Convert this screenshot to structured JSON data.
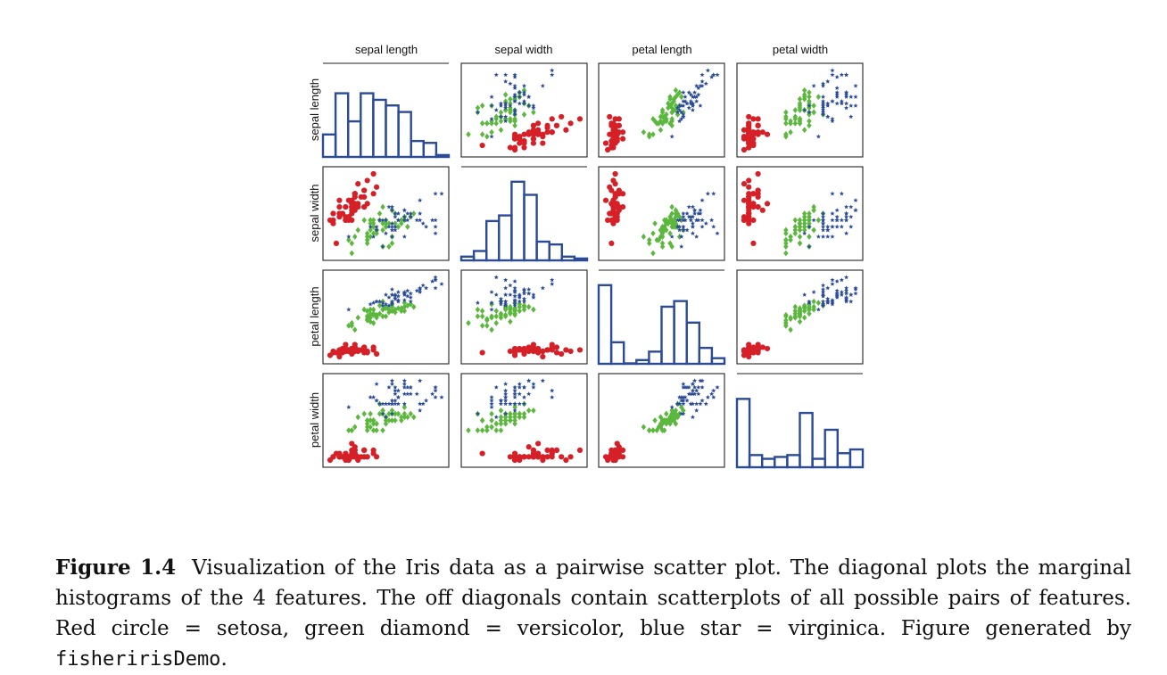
{
  "figure": {
    "features": [
      "sepal length",
      "sepal width",
      "petal length",
      "petal width"
    ],
    "colors": {
      "setosa": "#d62028",
      "versicolor": "#5cb73e",
      "virginica": "#2b4b98",
      "histogram": "#2b4b98",
      "frame": "#222222"
    }
  },
  "caption": {
    "label": "Figure 1.4",
    "text": "Visualization of the Iris data as a pairwise scatter plot.  The diagonal plots the marginal histograms of the 4 features.  The off diagonals contain scatterplots of all possible pairs of features.  Red circle = setosa, green diamond = versicolor, blue star = virginica. Figure generated by ",
    "code": "fisheririsDemo",
    "end": "."
  },
  "chart_data": {
    "type": "scatter",
    "subtype": "pairwise scatter matrix with histograms on the diagonal",
    "variables": [
      "sepal length",
      "sepal width",
      "petal length",
      "petal width"
    ],
    "axis_ranges": {
      "sepal length": [
        4.3,
        7.9
      ],
      "sepal width": [
        2.0,
        4.4
      ],
      "petal length": [
        1.0,
        6.9
      ],
      "petal width": [
        0.1,
        2.5
      ]
    },
    "grid": false,
    "legend": "none",
    "histogram_heights": {
      "sepal length": [
        0.24,
        0.68,
        0.38,
        0.68,
        0.61,
        0.55,
        0.48,
        0.17,
        0.15,
        0.02
      ],
      "sepal width": [
        0.04,
        0.1,
        0.42,
        0.48,
        0.84,
        0.7,
        0.2,
        0.17,
        0.04,
        0.02
      ],
      "petal length": [
        0.84,
        0.23,
        0.0,
        0.04,
        0.13,
        0.61,
        0.67,
        0.44,
        0.17,
        0.06
      ],
      "petal width": [
        0.73,
        0.13,
        0.09,
        0.11,
        0.13,
        0.58,
        0.09,
        0.4,
        0.15,
        0.19
      ]
    },
    "series": [
      {
        "name": "setosa",
        "marker": "circle",
        "color": "#d62028",
        "points": [
          [
            5.1,
            3.5,
            1.4,
            0.2
          ],
          [
            4.9,
            3.0,
            1.4,
            0.2
          ],
          [
            4.7,
            3.2,
            1.3,
            0.2
          ],
          [
            4.6,
            3.1,
            1.5,
            0.2
          ],
          [
            5.0,
            3.6,
            1.4,
            0.2
          ],
          [
            5.4,
            3.9,
            1.7,
            0.4
          ],
          [
            4.6,
            3.4,
            1.4,
            0.3
          ],
          [
            5.0,
            3.4,
            1.5,
            0.2
          ],
          [
            4.4,
            2.9,
            1.4,
            0.2
          ],
          [
            4.9,
            3.1,
            1.5,
            0.1
          ],
          [
            5.4,
            3.7,
            1.5,
            0.2
          ],
          [
            4.8,
            3.4,
            1.6,
            0.2
          ],
          [
            4.8,
            3.0,
            1.4,
            0.1
          ],
          [
            4.3,
            3.0,
            1.1,
            0.1
          ],
          [
            5.8,
            4.0,
            1.2,
            0.2
          ],
          [
            5.7,
            4.4,
            1.5,
            0.4
          ],
          [
            5.4,
            3.9,
            1.3,
            0.4
          ],
          [
            5.1,
            3.5,
            1.4,
            0.3
          ],
          [
            5.7,
            3.8,
            1.7,
            0.3
          ],
          [
            5.1,
            3.8,
            1.5,
            0.3
          ],
          [
            5.4,
            3.4,
            1.7,
            0.2
          ],
          [
            5.1,
            3.7,
            1.5,
            0.4
          ],
          [
            4.6,
            3.6,
            1.0,
            0.2
          ],
          [
            5.1,
            3.3,
            1.7,
            0.5
          ],
          [
            4.8,
            3.4,
            1.9,
            0.2
          ],
          [
            5.0,
            3.0,
            1.6,
            0.2
          ],
          [
            5.0,
            3.4,
            1.6,
            0.4
          ],
          [
            5.2,
            3.5,
            1.5,
            0.2
          ],
          [
            5.2,
            3.4,
            1.4,
            0.2
          ],
          [
            4.7,
            3.2,
            1.6,
            0.2
          ],
          [
            4.8,
            3.1,
            1.6,
            0.2
          ],
          [
            5.4,
            3.4,
            1.5,
            0.4
          ],
          [
            5.2,
            4.1,
            1.5,
            0.1
          ],
          [
            5.5,
            4.2,
            1.4,
            0.2
          ],
          [
            4.9,
            3.1,
            1.5,
            0.2
          ],
          [
            5.0,
            3.2,
            1.2,
            0.2
          ],
          [
            5.5,
            3.5,
            1.3,
            0.2
          ],
          [
            4.9,
            3.6,
            1.4,
            0.1
          ],
          [
            4.4,
            3.0,
            1.3,
            0.2
          ],
          [
            5.1,
            3.4,
            1.5,
            0.2
          ],
          [
            5.0,
            3.5,
            1.3,
            0.3
          ],
          [
            4.5,
            2.3,
            1.3,
            0.3
          ],
          [
            4.4,
            3.2,
            1.3,
            0.2
          ],
          [
            5.0,
            3.5,
            1.6,
            0.6
          ],
          [
            5.1,
            3.8,
            1.9,
            0.4
          ],
          [
            4.8,
            3.0,
            1.4,
            0.3
          ],
          [
            5.1,
            3.8,
            1.6,
            0.2
          ],
          [
            4.6,
            3.2,
            1.4,
            0.2
          ],
          [
            5.3,
            3.7,
            1.5,
            0.2
          ],
          [
            5.0,
            3.3,
            1.4,
            0.2
          ]
        ]
      },
      {
        "name": "versicolor",
        "marker": "diamond",
        "color": "#5cb73e",
        "points": [
          [
            7.0,
            3.2,
            4.7,
            1.4
          ],
          [
            6.4,
            3.2,
            4.5,
            1.5
          ],
          [
            6.9,
            3.1,
            4.9,
            1.5
          ],
          [
            5.5,
            2.3,
            4.0,
            1.3
          ],
          [
            6.5,
            2.8,
            4.6,
            1.5
          ],
          [
            5.7,
            2.8,
            4.5,
            1.3
          ],
          [
            6.3,
            3.3,
            4.7,
            1.6
          ],
          [
            4.9,
            2.4,
            3.3,
            1.0
          ],
          [
            6.6,
            2.9,
            4.6,
            1.3
          ],
          [
            5.2,
            2.7,
            3.9,
            1.4
          ],
          [
            5.0,
            2.0,
            3.5,
            1.0
          ],
          [
            5.9,
            3.0,
            4.2,
            1.5
          ],
          [
            6.0,
            2.2,
            4.0,
            1.0
          ],
          [
            6.1,
            2.9,
            4.7,
            1.4
          ],
          [
            5.6,
            2.9,
            3.6,
            1.3
          ],
          [
            6.7,
            3.1,
            4.4,
            1.4
          ],
          [
            5.6,
            3.0,
            4.5,
            1.5
          ],
          [
            5.8,
            2.7,
            4.1,
            1.0
          ],
          [
            6.2,
            2.2,
            4.5,
            1.5
          ],
          [
            5.6,
            2.5,
            3.9,
            1.1
          ],
          [
            5.9,
            3.2,
            4.8,
            1.8
          ],
          [
            6.1,
            2.8,
            4.0,
            1.3
          ],
          [
            6.3,
            2.5,
            4.9,
            1.5
          ],
          [
            6.1,
            2.8,
            4.7,
            1.2
          ],
          [
            6.4,
            2.9,
            4.3,
            1.3
          ],
          [
            6.6,
            3.0,
            4.4,
            1.4
          ],
          [
            6.8,
            2.8,
            4.8,
            1.4
          ],
          [
            6.7,
            3.0,
            5.0,
            1.7
          ],
          [
            6.0,
            2.9,
            4.5,
            1.5
          ],
          [
            5.7,
            2.6,
            3.5,
            1.0
          ],
          [
            5.5,
            2.4,
            3.8,
            1.1
          ],
          [
            5.5,
            2.4,
            3.7,
            1.0
          ],
          [
            5.8,
            2.7,
            3.9,
            1.2
          ],
          [
            6.0,
            2.7,
            5.1,
            1.6
          ],
          [
            5.4,
            3.0,
            4.5,
            1.5
          ],
          [
            6.0,
            3.4,
            4.5,
            1.6
          ],
          [
            6.7,
            3.1,
            4.7,
            1.5
          ],
          [
            6.3,
            2.3,
            4.4,
            1.3
          ],
          [
            5.6,
            3.0,
            4.1,
            1.3
          ],
          [
            5.5,
            2.5,
            4.0,
            1.3
          ],
          [
            5.5,
            2.6,
            4.4,
            1.2
          ],
          [
            6.1,
            3.0,
            4.6,
            1.4
          ],
          [
            5.8,
            2.6,
            4.0,
            1.2
          ],
          [
            5.0,
            2.3,
            3.3,
            1.0
          ],
          [
            5.6,
            2.7,
            4.2,
            1.3
          ],
          [
            5.7,
            3.0,
            4.2,
            1.2
          ],
          [
            5.7,
            2.9,
            4.2,
            1.3
          ],
          [
            6.2,
            2.9,
            4.3,
            1.3
          ],
          [
            5.1,
            2.5,
            3.0,
            1.1
          ],
          [
            5.7,
            2.8,
            4.1,
            1.3
          ]
        ]
      },
      {
        "name": "virginica",
        "marker": "star",
        "color": "#2b4b98",
        "points": [
          [
            6.3,
            3.3,
            6.0,
            2.5
          ],
          [
            5.8,
            2.7,
            5.1,
            1.9
          ],
          [
            7.1,
            3.0,
            5.9,
            2.1
          ],
          [
            6.3,
            2.9,
            5.6,
            1.8
          ],
          [
            6.5,
            3.0,
            5.8,
            2.2
          ],
          [
            7.6,
            3.0,
            6.6,
            2.1
          ],
          [
            4.9,
            2.5,
            4.5,
            1.7
          ],
          [
            7.3,
            2.9,
            6.3,
            1.8
          ],
          [
            6.7,
            2.5,
            5.8,
            1.8
          ],
          [
            7.2,
            3.6,
            6.1,
            2.5
          ],
          [
            6.5,
            3.2,
            5.1,
            2.0
          ],
          [
            6.4,
            2.7,
            5.3,
            1.9
          ],
          [
            6.8,
            3.0,
            5.5,
            2.1
          ],
          [
            5.7,
            2.5,
            5.0,
            2.0
          ],
          [
            5.8,
            2.8,
            5.1,
            2.4
          ],
          [
            6.4,
            3.2,
            5.3,
            2.3
          ],
          [
            6.5,
            3.0,
            5.5,
            1.8
          ],
          [
            7.7,
            3.8,
            6.7,
            2.2
          ],
          [
            7.7,
            2.6,
            6.9,
            2.3
          ],
          [
            6.0,
            2.2,
            5.0,
            1.5
          ],
          [
            6.9,
            3.2,
            5.7,
            2.3
          ],
          [
            5.6,
            2.8,
            4.9,
            2.0
          ],
          [
            7.7,
            2.8,
            6.7,
            2.0
          ],
          [
            6.3,
            2.7,
            4.9,
            1.8
          ],
          [
            6.7,
            3.3,
            5.7,
            2.1
          ],
          [
            7.2,
            3.2,
            6.0,
            1.8
          ],
          [
            6.2,
            2.8,
            4.8,
            1.8
          ],
          [
            6.1,
            3.0,
            4.9,
            1.8
          ],
          [
            6.4,
            2.8,
            5.6,
            2.1
          ],
          [
            7.2,
            3.0,
            5.8,
            1.6
          ],
          [
            7.4,
            2.8,
            6.1,
            1.9
          ],
          [
            7.9,
            3.8,
            6.4,
            2.0
          ],
          [
            6.4,
            2.8,
            5.6,
            2.2
          ],
          [
            6.3,
            2.8,
            5.1,
            1.5
          ],
          [
            6.1,
            2.6,
            5.6,
            1.4
          ],
          [
            7.7,
            3.0,
            6.1,
            2.3
          ],
          [
            6.3,
            3.4,
            5.6,
            2.4
          ],
          [
            6.4,
            3.1,
            5.5,
            1.8
          ],
          [
            6.0,
            3.0,
            4.8,
            1.8
          ],
          [
            6.9,
            3.1,
            5.4,
            2.1
          ],
          [
            6.7,
            3.1,
            5.6,
            2.4
          ],
          [
            6.9,
            3.1,
            5.1,
            2.3
          ],
          [
            5.8,
            2.7,
            5.1,
            1.9
          ],
          [
            6.8,
            3.2,
            5.9,
            2.3
          ],
          [
            6.7,
            3.3,
            5.7,
            2.5
          ],
          [
            6.7,
            3.0,
            5.2,
            2.3
          ],
          [
            6.3,
            2.5,
            5.0,
            1.9
          ],
          [
            6.5,
            3.0,
            5.2,
            2.0
          ],
          [
            6.2,
            3.4,
            5.4,
            2.3
          ],
          [
            5.9,
            3.0,
            5.1,
            1.8
          ]
        ]
      }
    ]
  }
}
